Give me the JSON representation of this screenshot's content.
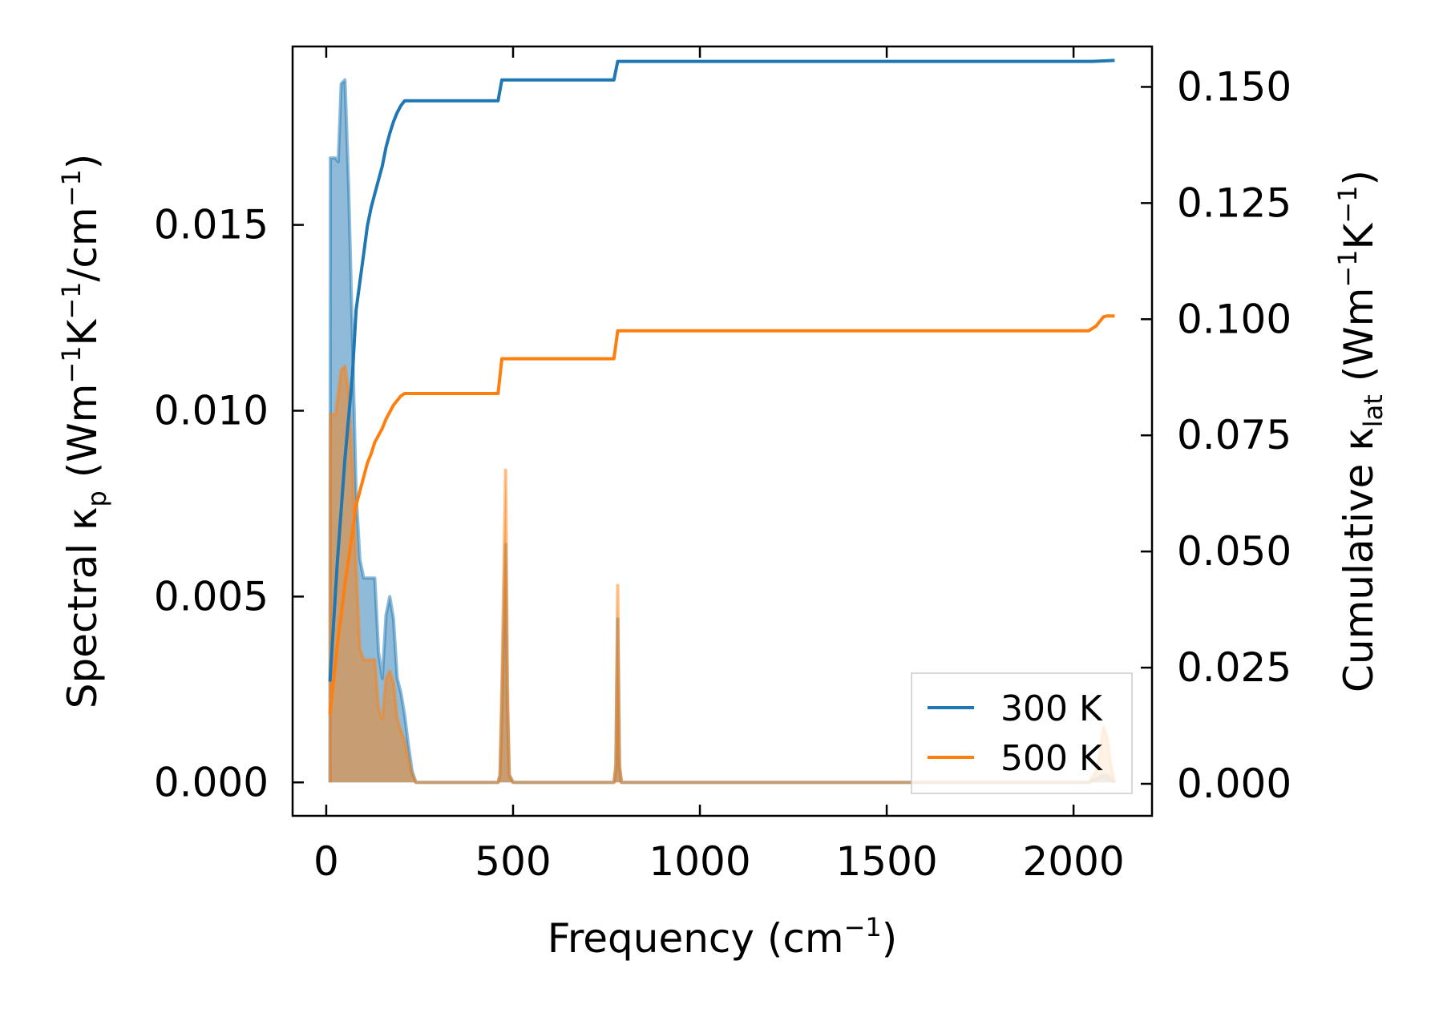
{
  "chart_data": {
    "type": "line",
    "xlabel": {
      "main": "Frequency (cm",
      "sup": "−1",
      "end": ")"
    },
    "ylabel_left": {
      "main": "Spectral κ",
      "sub": "p",
      "mid": " (Wm",
      "sup1": "−1",
      "k": "K",
      "sup2": "−1",
      "slash": "/cm",
      "sup3": "−1",
      "end": ")"
    },
    "ylabel_right": {
      "main": "Cumulative κ",
      "sub": "lat",
      "mid": " (Wm",
      "sup1": "−1",
      "k": "K",
      "sup2": "−1",
      "end": ")"
    },
    "xlim": [
      -90,
      2210
    ],
    "ylim_left": [
      -0.0009,
      0.0198
    ],
    "ylim_right": [
      -0.0069,
      0.1587
    ],
    "xticks": [
      0,
      500,
      1000,
      1500,
      2000
    ],
    "xtick_labels": [
      "0",
      "500",
      "1000",
      "1500",
      "2000"
    ],
    "yticks_left": [
      0.0,
      0.005,
      0.01,
      0.015
    ],
    "ytick_labels_left": [
      "0.000",
      "0.005",
      "0.010",
      "0.015"
    ],
    "yticks_right": [
      0.0,
      0.025,
      0.05,
      0.075,
      0.1,
      0.125,
      0.15
    ],
    "ytick_labels_right": [
      "0.000",
      "0.025",
      "0.050",
      "0.075",
      "0.100",
      "0.125",
      "0.150"
    ],
    "legend_position": "lower-right",
    "grid": false,
    "series": [
      {
        "name": "300 K",
        "color": "#1f77b4",
        "spectral": {
          "x": [
            10,
            11,
            25,
            32,
            40,
            50,
            60,
            70,
            80,
            90,
            100,
            110,
            120,
            130,
            140,
            150,
            160,
            170,
            180,
            190,
            200,
            210,
            220,
            230,
            240,
            460,
            465,
            470,
            480,
            485,
            490,
            500,
            770,
            775,
            780,
            785,
            790,
            800,
            2040,
            2060,
            2080,
            2090,
            2100,
            2110
          ],
          "y": [
            0.0,
            0.0168,
            0.0168,
            0.0167,
            0.0188,
            0.0189,
            0.016,
            0.012,
            0.0078,
            0.006,
            0.0055,
            0.0055,
            0.0055,
            0.0055,
            0.0035,
            0.0028,
            0.0045,
            0.005,
            0.0044,
            0.0028,
            0.0024,
            0.0018,
            0.001,
            0.0003,
            0.0,
            0.0,
            0.0002,
            0.002,
            0.0064,
            0.002,
            0.0002,
            0.0,
            0.0,
            0.0004,
            0.0044,
            0.0004,
            0.0,
            0.0,
            0.0,
            0.0001,
            0.0002,
            0.0002,
            0.0001,
            0.0
          ]
        },
        "cumulative": {
          "x": [
            10,
            30,
            50,
            70,
            80,
            90,
            100,
            110,
            120,
            130,
            140,
            150,
            160,
            170,
            180,
            190,
            200,
            210,
            220,
            240,
            460,
            470,
            480,
            770,
            780,
            790,
            2050,
            2080,
            2110
          ],
          "y": [
            0.022,
            0.048,
            0.07,
            0.088,
            0.102,
            0.108,
            0.114,
            0.12,
            0.124,
            0.127,
            0.13,
            0.133,
            0.137,
            0.14,
            0.1425,
            0.1445,
            0.146,
            0.147,
            0.147,
            0.147,
            0.147,
            0.1515,
            0.1515,
            0.1515,
            0.1555,
            0.1555,
            0.1555,
            0.1556,
            0.1557
          ]
        }
      },
      {
        "name": "500 K",
        "color": "#ff7f0e",
        "spectral": {
          "x": [
            10,
            11,
            25,
            40,
            50,
            60,
            70,
            80,
            90,
            100,
            110,
            120,
            130,
            140,
            150,
            160,
            170,
            180,
            190,
            200,
            210,
            220,
            230,
            240,
            460,
            465,
            470,
            480,
            485,
            490,
            500,
            770,
            775,
            780,
            785,
            790,
            800,
            2040,
            2060,
            2070,
            2080,
            2090,
            2100,
            2110
          ],
          "y": [
            0.0,
            0.0099,
            0.0099,
            0.0111,
            0.0112,
            0.0105,
            0.0085,
            0.0058,
            0.0036,
            0.0033,
            0.0033,
            0.0033,
            0.0033,
            0.002,
            0.0017,
            0.0028,
            0.003,
            0.0027,
            0.0017,
            0.0014,
            0.0011,
            0.0006,
            0.0002,
            0.0,
            0.0,
            0.0002,
            0.0026,
            0.0084,
            0.0026,
            0.0002,
            0.0,
            0.0,
            0.0005,
            0.0053,
            0.0005,
            0.0,
            0.0,
            0.0,
            0.0003,
            0.0008,
            0.0015,
            0.0012,
            0.0005,
            0.0
          ]
        },
        "cumulative": {
          "x": [
            10,
            30,
            50,
            70,
            80,
            90,
            100,
            110,
            120,
            130,
            140,
            150,
            160,
            170,
            180,
            190,
            200,
            210,
            220,
            240,
            460,
            470,
            480,
            770,
            780,
            790,
            2040,
            2060,
            2070,
            2080,
            2090,
            2110
          ],
          "y": [
            0.015,
            0.03,
            0.043,
            0.054,
            0.06,
            0.063,
            0.066,
            0.069,
            0.071,
            0.0735,
            0.075,
            0.0765,
            0.0785,
            0.08,
            0.0815,
            0.0825,
            0.0835,
            0.084,
            0.084,
            0.084,
            0.084,
            0.0915,
            0.0915,
            0.0915,
            0.0975,
            0.0975,
            0.0975,
            0.0985,
            0.0995,
            0.1005,
            0.1007,
            0.1007
          ]
        }
      }
    ]
  }
}
